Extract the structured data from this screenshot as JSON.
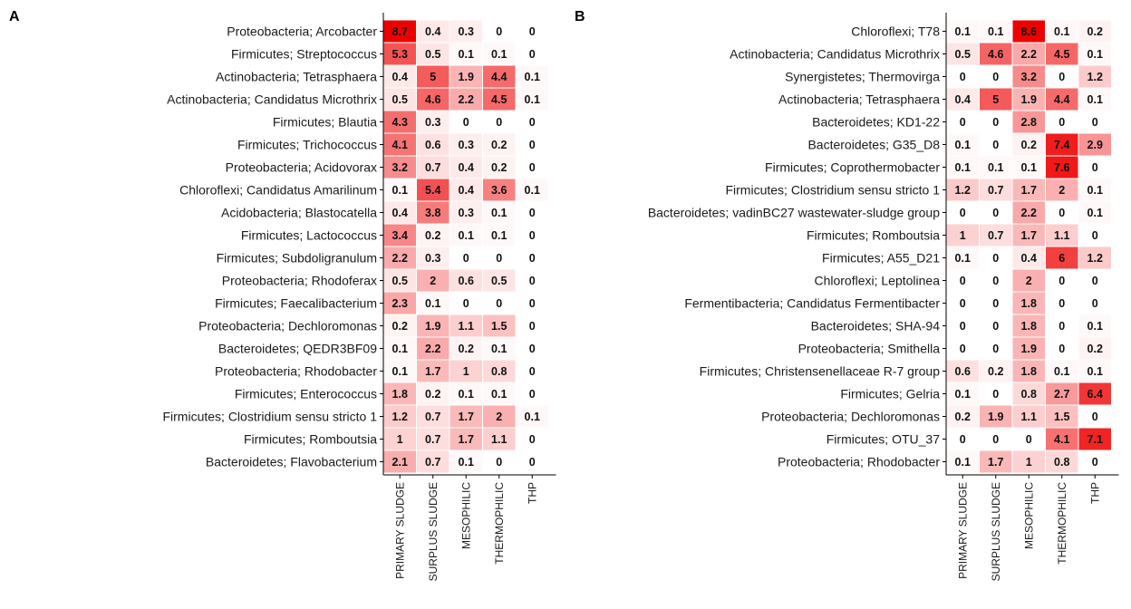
{
  "chart_data": [
    {
      "panel": "A",
      "type": "heatmap",
      "columns": [
        "PRIMARY SLUDGE",
        "SURPLUS SLUDGE",
        "MESOPHILIC",
        "THERMOPHILIC",
        "THP"
      ],
      "rows": [
        "Proteobacteria; Arcobacter",
        "Firmicutes; Streptococcus",
        "Actinobacteria; Tetrasphaera",
        "Actinobacteria; Candidatus Microthrix",
        "Firmicutes; Blautia",
        "Firmicutes; Trichococcus",
        "Proteobacteria; Acidovorax",
        "Chloroflexi; Candidatus Amarilinum",
        "Acidobacteria; Blastocatella",
        "Firmicutes; Lactococcus",
        "Firmicutes; Subdoligranulum",
        "Proteobacteria; Rhodoferax",
        "Firmicutes; Faecalibacterium",
        "Proteobacteria; Dechloromonas",
        "Bacteroidetes; QEDR3BF09",
        "Proteobacteria; Rhodobacter",
        "Firmicutes; Enterococcus",
        "Firmicutes; Clostridium sensu stricto 1",
        "Firmicutes; Romboutsia",
        "Bacteroidetes; Flavobacterium"
      ],
      "values": [
        [
          8.7,
          0.4,
          0.3,
          0,
          0
        ],
        [
          5.3,
          0.5,
          0.1,
          0.1,
          0
        ],
        [
          0.4,
          5,
          1.9,
          4.4,
          0.1
        ],
        [
          0.5,
          4.6,
          2.2,
          4.5,
          0.1
        ],
        [
          4.3,
          0.3,
          0,
          0,
          0
        ],
        [
          4.1,
          0.6,
          0.3,
          0.2,
          0
        ],
        [
          3.2,
          0.7,
          0.4,
          0.2,
          0
        ],
        [
          0.1,
          5.4,
          0.4,
          3.6,
          0.1
        ],
        [
          0.4,
          3.8,
          0.3,
          0.1,
          0
        ],
        [
          3.4,
          0.2,
          0.1,
          0.1,
          0
        ],
        [
          2.2,
          0.3,
          0,
          0,
          0
        ],
        [
          0.5,
          2,
          0.6,
          0.5,
          0
        ],
        [
          2.3,
          0.1,
          0,
          0,
          0
        ],
        [
          0.2,
          1.9,
          1.1,
          1.5,
          0
        ],
        [
          0.1,
          2.2,
          0.2,
          0.1,
          0
        ],
        [
          0.1,
          1.7,
          1,
          0.8,
          0
        ],
        [
          1.8,
          0.2,
          0.1,
          0.1,
          0
        ],
        [
          1.2,
          0.7,
          1.7,
          2,
          0.1
        ],
        [
          1,
          0.7,
          1.7,
          1.1,
          0
        ],
        [
          2.1,
          0.7,
          0.1,
          0,
          0
        ]
      ]
    },
    {
      "panel": "B",
      "type": "heatmap",
      "columns": [
        "PRIMARY SLUDGE",
        "SURPLUS SLUDGE",
        "MESOPHILIC",
        "THERMOPHILIC",
        "THP"
      ],
      "rows": [
        "Chloroflexi; T78",
        "Actinobacteria; Candidatus Microthrix",
        "Synergistetes; Thermovirga",
        "Actinobacteria; Tetrasphaera",
        "Bacteroidetes; KD1-22",
        "Bacteroidetes; G35_D8",
        "Firmicutes; Coprothermobacter",
        "Firmicutes; Clostridium sensu stricto 1",
        "Bacteroidetes; vadinBC27 wastewater-sludge group",
        "Firmicutes; Romboutsia",
        "Firmicutes; A55_D21",
        "Chloroflexi; Leptolinea",
        "Fermentibacteria; Candidatus Fermentibacter",
        "Bacteroidetes; SHA-94",
        "Proteobacteria; Smithella",
        "Firmicutes; Christensenellaceae R-7 group",
        "Firmicutes; Gelria",
        "Proteobacteria; Dechloromonas",
        "Firmicutes; OTU_37",
        "Proteobacteria; Rhodobacter"
      ],
      "values": [
        [
          0.1,
          0.1,
          8.6,
          0.1,
          0.2
        ],
        [
          0.5,
          4.6,
          2.2,
          4.5,
          0.1
        ],
        [
          0,
          0,
          3.2,
          0,
          1.2
        ],
        [
          0.4,
          5,
          1.9,
          4.4,
          0.1
        ],
        [
          0,
          0,
          2.8,
          0,
          0
        ],
        [
          0.1,
          0,
          0.2,
          7.4,
          2.9
        ],
        [
          0.1,
          0.1,
          0.1,
          7.6,
          0
        ],
        [
          1.2,
          0.7,
          1.7,
          2,
          0.1
        ],
        [
          0,
          0,
          2.2,
          0,
          0.1
        ],
        [
          1,
          0.7,
          1.7,
          1.1,
          0
        ],
        [
          0.1,
          0,
          0.4,
          6,
          1.2
        ],
        [
          0,
          0,
          2,
          0,
          0
        ],
        [
          0,
          0,
          1.8,
          0,
          0
        ],
        [
          0,
          0,
          1.8,
          0,
          0.1
        ],
        [
          0,
          0,
          1.9,
          0,
          0.2
        ],
        [
          0.6,
          0.2,
          1.8,
          0.1,
          0.1
        ],
        [
          0.1,
          0,
          0.8,
          2.7,
          6.4
        ],
        [
          0.2,
          1.9,
          1.1,
          1.5,
          0
        ],
        [
          0,
          0,
          0,
          4.1,
          7.1
        ],
        [
          0.1,
          1.7,
          1,
          0.8,
          0
        ]
      ]
    }
  ],
  "colors": {
    "low": "#ffffff",
    "high": "#ee0000",
    "text": "#111111"
  }
}
